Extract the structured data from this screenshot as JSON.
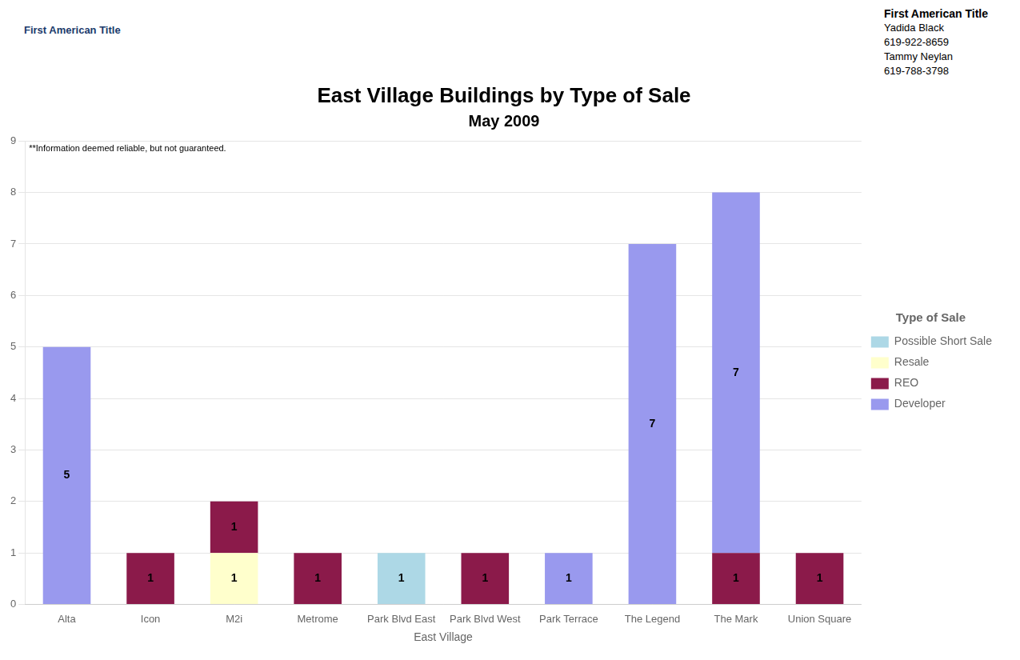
{
  "chart_data": {
    "type": "bar",
    "stacked": true,
    "title": "East Village Buildings by Type of Sale",
    "subtitle": "May 2009",
    "xlabel": "East Village",
    "annotation": "**Information deemed reliable, but not guaranteed.",
    "logo_text": "First American Title",
    "header": [
      "First American Title",
      "Yadida Black",
      "619-922-8659",
      "Tammy Neylan",
      "619-788-3798"
    ],
    "legend_title": "Type of Sale",
    "legend": "right",
    "categories": [
      "Alta",
      "Icon",
      "M2i",
      "Metrome",
      "Park Blvd East",
      "Park Blvd West",
      "Park Terrace",
      "The Legend",
      "The Mark",
      "Union Square"
    ],
    "series": [
      {
        "name": "Possible Short Sale",
        "color": "#add8e6",
        "values": [
          0,
          0,
          0,
          0,
          1,
          0,
          0,
          0,
          0,
          0
        ]
      },
      {
        "name": "Resale",
        "color": "#ffffcc",
        "values": [
          0,
          0,
          1,
          0,
          0,
          0,
          0,
          0,
          0,
          0
        ]
      },
      {
        "name": "REO",
        "color": "#8b1a4a",
        "values": [
          0,
          1,
          1,
          1,
          0,
          1,
          0,
          0,
          1,
          1
        ]
      },
      {
        "name": "Developer",
        "color": "#9999ee",
        "values": [
          5,
          0,
          0,
          0,
          0,
          0,
          1,
          7,
          7,
          0
        ]
      }
    ],
    "ylim": [
      0,
      9
    ],
    "yticks": [
      0,
      1,
      2,
      3,
      4,
      5,
      6,
      7,
      8,
      9
    ],
    "grid": true,
    "data_labels": true
  }
}
